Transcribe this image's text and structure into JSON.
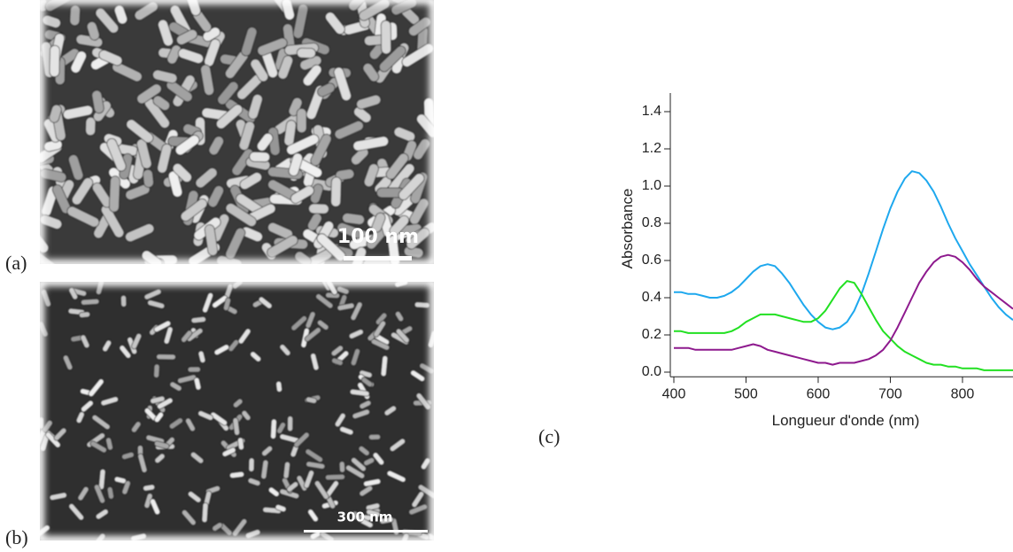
{
  "panels": {
    "a": {
      "label": "(a)",
      "scale_bar": "100 nm"
    },
    "b": {
      "label": "(b)",
      "scale_bar": "300 nm"
    },
    "c": {
      "label": "(c)"
    }
  },
  "chart_data": {
    "type": "line",
    "x_label": "Longueur d'onde (nm)",
    "y_label": "Absorbance",
    "x": [
      400,
      410,
      420,
      430,
      440,
      450,
      460,
      470,
      480,
      490,
      500,
      510,
      520,
      530,
      540,
      550,
      560,
      570,
      580,
      590,
      600,
      610,
      620,
      630,
      640,
      650,
      660,
      670,
      680,
      690,
      700,
      710,
      720,
      730,
      740,
      750,
      760,
      770,
      780,
      790,
      800,
      810,
      820,
      830,
      840,
      850,
      860,
      870
    ],
    "series": [
      {
        "color": "#1ea8ee",
        "values": [
          0.43,
          0.43,
          0.42,
          0.42,
          0.41,
          0.4,
          0.4,
          0.41,
          0.43,
          0.46,
          0.5,
          0.54,
          0.57,
          0.58,
          0.57,
          0.53,
          0.48,
          0.42,
          0.36,
          0.31,
          0.27,
          0.24,
          0.23,
          0.24,
          0.27,
          0.33,
          0.42,
          0.53,
          0.65,
          0.77,
          0.88,
          0.97,
          1.04,
          1.08,
          1.07,
          1.03,
          0.97,
          0.89,
          0.8,
          0.72,
          0.65,
          0.58,
          0.52,
          0.46,
          0.4,
          0.35,
          0.31,
          0.28
        ]
      },
      {
        "color": "#22e022",
        "values": [
          0.22,
          0.22,
          0.21,
          0.21,
          0.21,
          0.21,
          0.21,
          0.21,
          0.22,
          0.24,
          0.27,
          0.29,
          0.31,
          0.31,
          0.31,
          0.3,
          0.29,
          0.28,
          0.27,
          0.27,
          0.29,
          0.33,
          0.39,
          0.45,
          0.49,
          0.48,
          0.42,
          0.35,
          0.28,
          0.22,
          0.18,
          0.14,
          0.11,
          0.09,
          0.07,
          0.05,
          0.04,
          0.04,
          0.03,
          0.03,
          0.02,
          0.02,
          0.02,
          0.01,
          0.01,
          0.01,
          0.01,
          0.01
        ]
      },
      {
        "color": "#8e1a8e",
        "values": [
          0.13,
          0.13,
          0.13,
          0.12,
          0.12,
          0.12,
          0.12,
          0.12,
          0.12,
          0.13,
          0.14,
          0.15,
          0.14,
          0.12,
          0.11,
          0.1,
          0.09,
          0.08,
          0.07,
          0.06,
          0.05,
          0.05,
          0.04,
          0.05,
          0.05,
          0.05,
          0.06,
          0.07,
          0.09,
          0.12,
          0.17,
          0.24,
          0.32,
          0.4,
          0.48,
          0.54,
          0.59,
          0.62,
          0.63,
          0.62,
          0.59,
          0.55,
          0.5,
          0.46,
          0.43,
          0.4,
          0.37,
          0.34
        ]
      }
    ],
    "xlim": [
      400,
      870
    ],
    "ylim": [
      -0.02,
      1.5
    ],
    "xticks": [
      400,
      500,
      600,
      700,
      800
    ],
    "yticks": [
      {
        "value": 0,
        "label": "0.0"
      },
      0.2,
      0.4,
      0.6,
      0.8,
      {
        "value": 1,
        "label": "1.0"
      },
      1.2,
      1.4
    ]
  }
}
